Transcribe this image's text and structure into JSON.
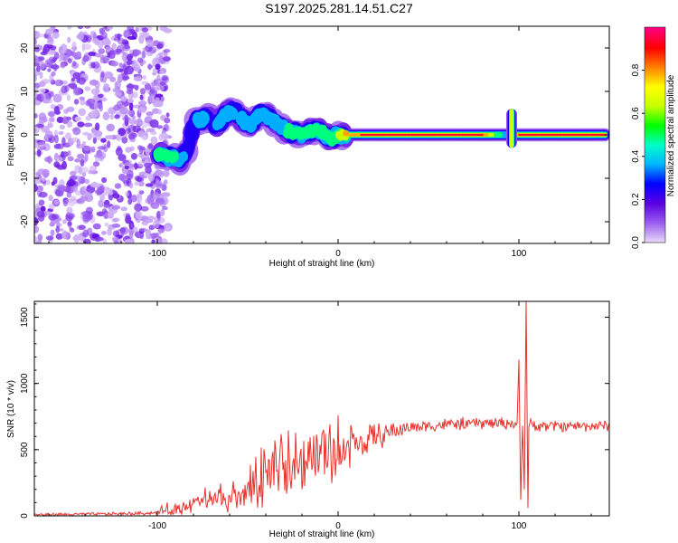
{
  "title": "S197.2025.281.14.51.C27",
  "chart_data": [
    {
      "type": "heatmap",
      "title": "S197.2025.281.14.51.C27",
      "xlabel": "Height of straight line (km)",
      "ylabel": "Frequency (Hz)",
      "xlim": [
        -168,
        150
      ],
      "ylim": [
        -25,
        25
      ],
      "xticks": [
        -100,
        0,
        100
      ],
      "yticks": [
        20,
        10,
        0,
        -10,
        -20
      ],
      "colorbar": {
        "label": "Normalized spectral amplitude",
        "range": [
          0,
          1
        ],
        "ticks": [
          0.0,
          0.2,
          0.4,
          0.6,
          0.8
        ],
        "colors": [
          "#e8d8f8",
          "#9a5cf0",
          "#5a00e0",
          "#0000ff",
          "#00b4ff",
          "#00ffc8",
          "#00ff00",
          "#c8ff00",
          "#ffff00",
          "#ff8000",
          "#ff0000",
          "#ff0080"
        ]
      },
      "ridge": {
        "x": [
          -100,
          -95,
          -90,
          -87,
          -84,
          -82,
          -80,
          -76,
          -72,
          -68,
          -64,
          -60,
          -56,
          -52,
          -48,
          -44,
          -40,
          -36,
          -32,
          -28,
          -24,
          -20,
          -16,
          -12,
          -8,
          -4,
          0,
          5,
          20,
          40,
          60,
          80,
          88,
          92,
          95,
          97,
          100,
          120,
          148
        ],
        "y": [
          -4.5,
          -5,
          -5.5,
          -6,
          -4,
          -2,
          3,
          3.5,
          4,
          2.5,
          3.5,
          5.5,
          5,
          3,
          2.5,
          4.5,
          4.5,
          3,
          2,
          1,
          0.5,
          0,
          1,
          1,
          0.5,
          -1,
          0,
          0,
          0,
          0,
          0,
          0,
          0,
          0,
          0,
          0,
          0,
          0,
          0
        ],
        "amplitude": [
          0.45,
          0.5,
          0.45,
          0.4,
          0.3,
          0.25,
          0.3,
          0.35,
          0.3,
          0.3,
          0.4,
          0.35,
          0.3,
          0.35,
          0.35,
          0.4,
          0.4,
          0.35,
          0.4,
          0.45,
          0.5,
          0.5,
          0.55,
          0.6,
          0.55,
          0.5,
          0.6,
          0.85,
          0.95,
          1.0,
          1.0,
          0.9,
          0.5,
          0.4,
          0.45,
          0.55,
          0.9,
          0.95,
          0.95
        ]
      },
      "burst": {
        "x": 96,
        "ymin": -3,
        "ymax": 6
      },
      "noise_region": {
        "xmin": -168,
        "xmax": -100,
        "ymin": -25,
        "ymax": 25
      }
    },
    {
      "type": "line",
      "xlabel": "Height of straight line (km)",
      "ylabel": "SNR (10 * v/v)",
      "xlim": [
        -168,
        150
      ],
      "ylim": [
        0,
        1620
      ],
      "xticks": [
        -100,
        0,
        100
      ],
      "yticks": [
        0,
        500,
        1000,
        1500
      ],
      "color": "#e8302a",
      "envelope": {
        "x": [
          -168,
          -140,
          -110,
          -100,
          -90,
          -80,
          -70,
          -60,
          -50,
          -40,
          -30,
          -20,
          -10,
          0,
          10,
          20,
          30,
          40,
          60,
          80,
          95,
          100,
          110,
          130,
          150
        ],
        "y": [
          10,
          12,
          18,
          25,
          50,
          90,
          110,
          130,
          150,
          250,
          320,
          380,
          450,
          480,
          540,
          590,
          640,
          670,
          690,
          700,
          700,
          690,
          680,
          680,
          680
        ]
      },
      "noise_amplitude": {
        "x": [
          -168,
          -100,
          -90,
          -70,
          -50,
          -40,
          -20,
          0,
          20,
          40,
          90,
          150
        ],
        "y": [
          8,
          12,
          40,
          70,
          90,
          150,
          170,
          160,
          90,
          40,
          40,
          35
        ]
      },
      "spike": {
        "x": [
          99,
          100,
          101,
          102,
          103,
          104,
          105
        ],
        "y": [
          700,
          1180,
          120,
          680,
          200,
          1620,
          60
        ]
      }
    }
  ]
}
